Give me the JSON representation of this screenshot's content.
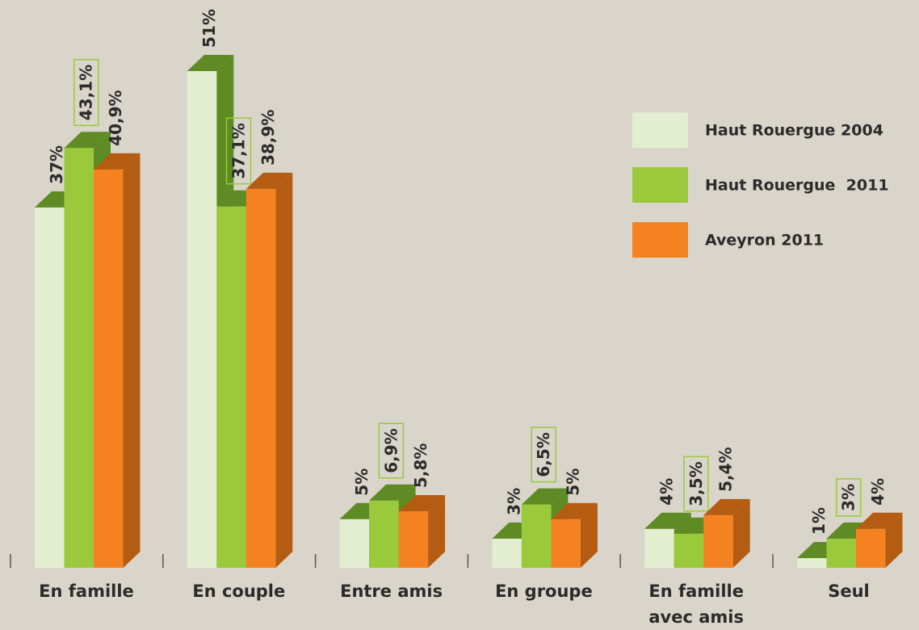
{
  "chart_data": {
    "type": "bar3d",
    "categories": [
      "En famille",
      "En couple",
      "Entre amis",
      "En groupe",
      "En famille avec amis",
      "Seul"
    ],
    "series": [
      {
        "name": "Haut Rouergue 2004",
        "color": "#e3edd0",
        "depth_color": "#5e8b24",
        "values": [
          37,
          51,
          5,
          3,
          4,
          1
        ],
        "value_labels": [
          "37%",
          "51%",
          "5%",
          "3%",
          "4%",
          "1%"
        ]
      },
      {
        "name": "Haut Rouergue  2011",
        "color": "#9aca3c",
        "depth_color": "#5e8b24",
        "boxed_labels": true,
        "values": [
          43.1,
          37.1,
          6.9,
          6.5,
          3.5,
          3
        ],
        "value_labels": [
          "43,1%",
          "37,1%",
          "6,9%",
          "6,5%",
          "3,5%",
          "3%"
        ]
      },
      {
        "name": "Aveyron 2011",
        "color": "#f58220",
        "depth_color": "#b45c12",
        "values": [
          40.9,
          38.9,
          5.8,
          5,
          5.4,
          4
        ],
        "value_labels": [
          "40,9%",
          "38,9%",
          "5,8%",
          "5%",
          "5,4%",
          "4%"
        ]
      }
    ],
    "legend": "upper right"
  }
}
